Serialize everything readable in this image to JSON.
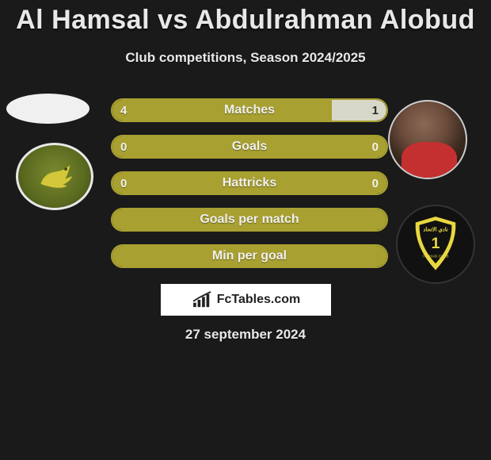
{
  "title": "Al Hamsal vs Abdulrahman Alobud",
  "subtitle": "Club competitions, Season 2024/2025",
  "date": "27 september 2024",
  "watermark": "FcTables.com",
  "colors": {
    "bar_primary": "#a8a030",
    "bar_border": "#a8a030",
    "bar_right_fill": "#d8d8c8",
    "background": "#1a1a1a",
    "text": "#e8e8e8"
  },
  "bars": [
    {
      "label": "Matches",
      "left_value": "4",
      "right_value": "1",
      "left_pct": 80,
      "right_pct": 20,
      "show_values": true,
      "split": true
    },
    {
      "label": "Goals",
      "left_value": "0",
      "right_value": "0",
      "left_pct": 100,
      "right_pct": 0,
      "show_values": true,
      "split": false
    },
    {
      "label": "Hattricks",
      "left_value": "0",
      "right_value": "0",
      "left_pct": 100,
      "right_pct": 0,
      "show_values": true,
      "split": false
    },
    {
      "label": "Goals per match",
      "left_value": "",
      "right_value": "",
      "left_pct": 100,
      "right_pct": 0,
      "show_values": false,
      "split": false
    },
    {
      "label": "Min per goal",
      "left_value": "",
      "right_value": "",
      "left_pct": 100,
      "right_pct": 0,
      "show_values": false,
      "split": false
    }
  ]
}
